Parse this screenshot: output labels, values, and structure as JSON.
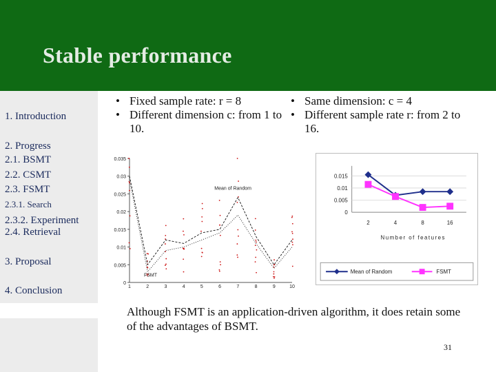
{
  "slide": {
    "title": "Stable performance",
    "summary": "Although FSMT is an application-driven algorithm, it does retain some of the advantages of BSMT.",
    "page_number": "31"
  },
  "sidebar": {
    "items": [
      {
        "label": "1. Introduction"
      },
      {
        "label": "2. Progress"
      },
      {
        "label": "2.1. BSMT"
      },
      {
        "label": "2.2. CSMT"
      },
      {
        "label": "2.3. FSMT"
      },
      {
        "label": "2.3.1. Search"
      },
      {
        "label": "2.3.2. Experiment"
      },
      {
        "label": "2.4. Retrieval"
      },
      {
        "label": "3. Proposal"
      },
      {
        "label": "4. Conclusion"
      }
    ],
    "active_index": 6
  },
  "left_panel": {
    "bullets": [
      "Fixed sample rate: r = 8",
      "Different dimension c: from 1 to 10."
    ]
  },
  "right_panel": {
    "bullets": [
      "Same dimension: c = 4",
      "Different sample rate r: from 2 to 16."
    ]
  },
  "colors": {
    "header": "#0f6a14",
    "sidebar": "#ececec",
    "nav_text": "#1a2a5c",
    "series_random": "#1f2f8c",
    "series_fsmt": "#ff33ff",
    "dots": "#cc1111"
  },
  "chart_data": [
    {
      "type": "line",
      "x": [
        1,
        2,
        3,
        4,
        5,
        6,
        7,
        8,
        9,
        10
      ],
      "xticks": [
        "1",
        "2",
        "3",
        "4",
        "5",
        "6",
        "7",
        "8",
        "9",
        "10"
      ],
      "yticks": [
        "0",
        "0.005",
        "0.01",
        "0.015",
        "0.02",
        "0.025",
        "0.03",
        "0.035"
      ],
      "ylim": [
        0,
        0.035
      ],
      "annotations": [
        "Mean of Random",
        "FSMT"
      ],
      "series": [
        {
          "values": [
            0.03,
            0.005,
            0.012,
            0.011,
            0.014,
            0.015,
            0.024,
            0.013,
            0.005,
            0.012
          ]
        },
        {
          "values": [
            0.029,
            0.003,
            0.009,
            0.01,
            0.012,
            0.014,
            0.019,
            0.011,
            0.004,
            0.01
          ]
        }
      ]
    },
    {
      "type": "line",
      "categories": [
        "2",
        "4",
        "8",
        "16"
      ],
      "yticks": [
        "0",
        "0.005",
        "0.01",
        "0.015"
      ],
      "ylim": [
        0,
        0.018
      ],
      "xlabel": "Number of features",
      "legend": "bottom",
      "series": [
        {
          "name": "Mean of Random",
          "values": [
            0.0155,
            0.007,
            0.0085,
            0.0085
          ]
        },
        {
          "name": "FSMT",
          "values": [
            0.0115,
            0.0065,
            0.002,
            0.0025
          ]
        }
      ]
    }
  ]
}
